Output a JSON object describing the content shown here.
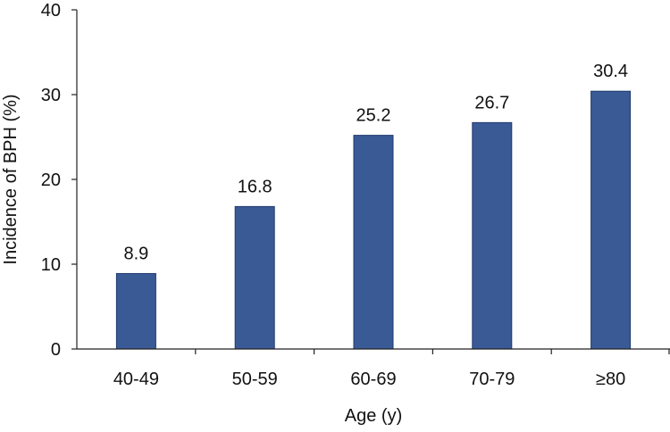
{
  "chart_data": {
    "type": "bar",
    "categories": [
      "40-49",
      "50-59",
      "60-69",
      "70-79",
      "≥80"
    ],
    "values": [
      8.9,
      16.8,
      25.2,
      26.7,
      30.4
    ],
    "value_labels": [
      "8.9",
      "16.8",
      "25.2",
      "26.7",
      "30.4"
    ],
    "title": "",
    "xlabel": "Age (y)",
    "ylabel": "Incidence of BPH (%)",
    "ylim": [
      0,
      40
    ],
    "yticks": [
      0,
      10,
      20,
      30,
      40
    ],
    "ytick_labels": [
      "0",
      "10",
      "20",
      "30",
      "40"
    ],
    "grid": false,
    "legend": "none",
    "bar_color": "#3a5a96"
  }
}
